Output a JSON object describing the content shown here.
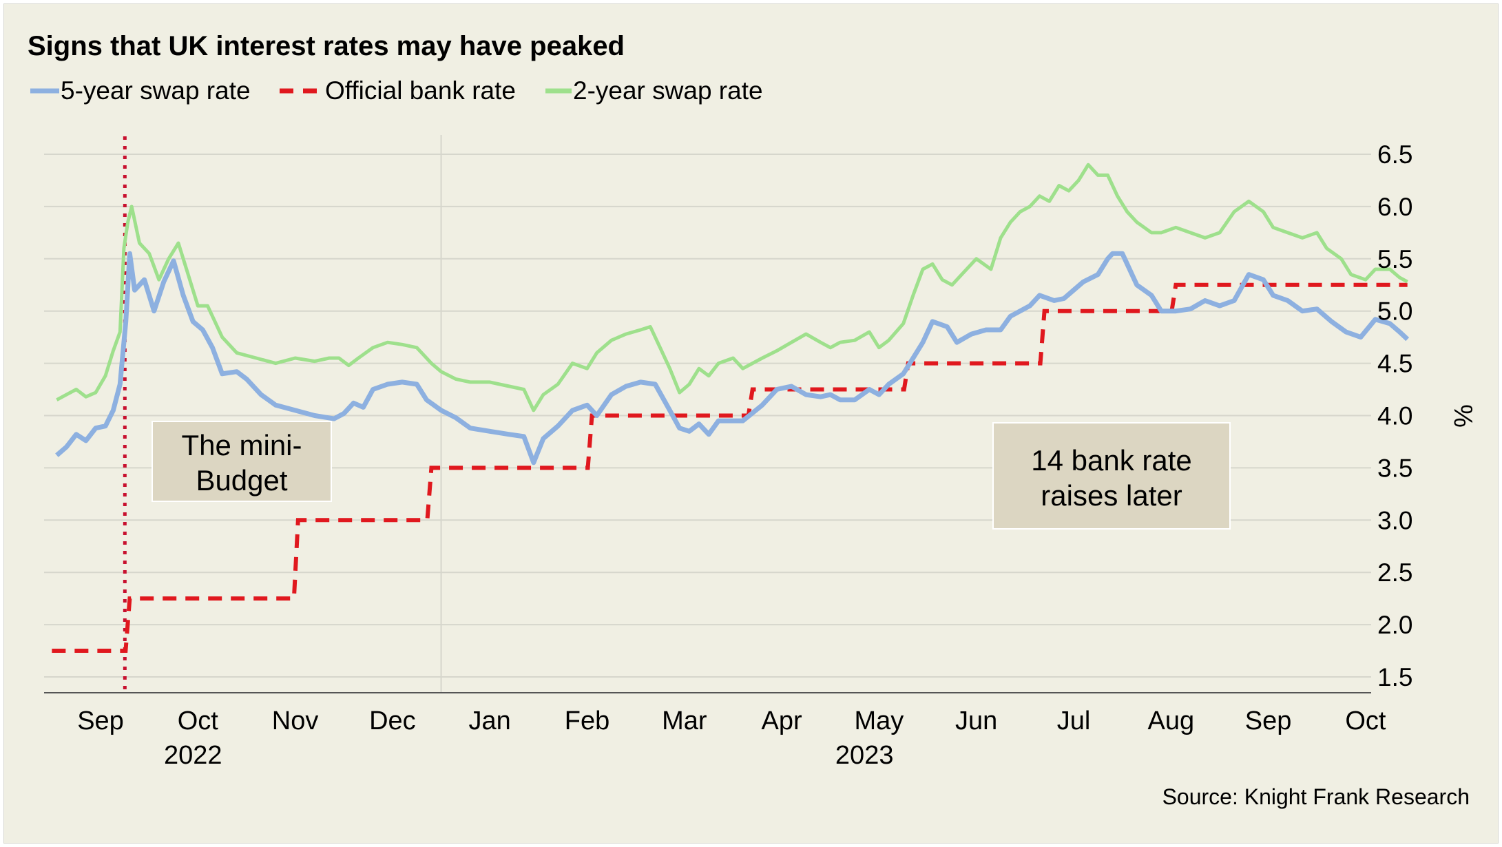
{
  "chart_data": {
    "type": "line",
    "title": "Signs that UK interest rates may have peaked",
    "ylabel": "%",
    "ylim": [
      1.35,
      6.55
    ],
    "yticks": [
      "6.5",
      "6.0",
      "5.5",
      "5.0",
      "4.5",
      "4.0",
      "3.5",
      "3.0",
      "2.5",
      "2.0",
      "1.5"
    ],
    "ytick_values": [
      6.5,
      6.0,
      5.5,
      5.0,
      4.5,
      4.0,
      3.5,
      3.0,
      2.5,
      2.0,
      1.5
    ],
    "x_start_month": 8,
    "x_end_month": 21,
    "month_labels": [
      "Sep",
      "Oct",
      "Nov",
      "Dec",
      "Jan",
      "Feb",
      "Mar",
      "Apr",
      "May",
      "Jun",
      "Jul",
      "Aug",
      "Sep",
      "Oct"
    ],
    "year_labels": [
      {
        "label": "2022",
        "month_center": 9.45
      },
      {
        "label": "2023",
        "month_center": 16.35
      }
    ],
    "year_divider_month": 12,
    "mini_budget_month": 8.75,
    "legend": [
      {
        "name": "5-year swap rate",
        "style": "solid",
        "color": "#8db0e0"
      },
      {
        "name": "Official bank rate",
        "style": "dashed",
        "color": "#e0181e"
      },
      {
        "name": "2-year swap rate",
        "style": "solid",
        "color": "#9ee08c"
      }
    ],
    "series": [
      {
        "name": "5-year swap rate",
        "color": "#8db0e0",
        "points": [
          [
            8.05,
            3.62
          ],
          [
            8.15,
            3.7
          ],
          [
            8.25,
            3.82
          ],
          [
            8.35,
            3.76
          ],
          [
            8.45,
            3.88
          ],
          [
            8.55,
            3.9
          ],
          [
            8.63,
            4.05
          ],
          [
            8.7,
            4.3
          ],
          [
            8.76,
            4.9
          ],
          [
            8.8,
            5.55
          ],
          [
            8.85,
            5.2
          ],
          [
            8.95,
            5.3
          ],
          [
            9.05,
            5.0
          ],
          [
            9.15,
            5.28
          ],
          [
            9.25,
            5.48
          ],
          [
            9.35,
            5.15
          ],
          [
            9.45,
            4.9
          ],
          [
            9.55,
            4.82
          ],
          [
            9.65,
            4.65
          ],
          [
            9.75,
            4.4
          ],
          [
            9.9,
            4.42
          ],
          [
            10.0,
            4.35
          ],
          [
            10.15,
            4.2
          ],
          [
            10.3,
            4.1
          ],
          [
            10.5,
            4.05
          ],
          [
            10.7,
            4.0
          ],
          [
            10.9,
            3.97
          ],
          [
            11.0,
            4.02
          ],
          [
            11.1,
            4.12
          ],
          [
            11.2,
            4.08
          ],
          [
            11.3,
            4.25
          ],
          [
            11.45,
            4.3
          ],
          [
            11.6,
            4.32
          ],
          [
            11.75,
            4.3
          ],
          [
            11.85,
            4.15
          ],
          [
            12.0,
            4.05
          ],
          [
            12.15,
            3.98
          ],
          [
            12.3,
            3.88
          ],
          [
            12.5,
            3.85
          ],
          [
            12.7,
            3.82
          ],
          [
            12.85,
            3.8
          ],
          [
            12.95,
            3.55
          ],
          [
            13.05,
            3.78
          ],
          [
            13.2,
            3.9
          ],
          [
            13.35,
            4.05
          ],
          [
            13.5,
            4.1
          ],
          [
            13.6,
            4.0
          ],
          [
            13.75,
            4.2
          ],
          [
            13.9,
            4.28
          ],
          [
            14.05,
            4.32
          ],
          [
            14.2,
            4.3
          ],
          [
            14.35,
            4.05
          ],
          [
            14.45,
            3.88
          ],
          [
            14.55,
            3.85
          ],
          [
            14.65,
            3.92
          ],
          [
            14.75,
            3.82
          ],
          [
            14.85,
            3.95
          ],
          [
            15.0,
            3.95
          ],
          [
            15.1,
            3.95
          ],
          [
            15.3,
            4.1
          ],
          [
            15.45,
            4.25
          ],
          [
            15.6,
            4.28
          ],
          [
            15.75,
            4.2
          ],
          [
            15.9,
            4.18
          ],
          [
            16.0,
            4.2
          ],
          [
            16.1,
            4.15
          ],
          [
            16.25,
            4.15
          ],
          [
            16.4,
            4.25
          ],
          [
            16.5,
            4.2
          ],
          [
            16.6,
            4.3
          ],
          [
            16.75,
            4.4
          ],
          [
            16.85,
            4.55
          ],
          [
            16.95,
            4.7
          ],
          [
            17.05,
            4.9
          ],
          [
            17.2,
            4.85
          ],
          [
            17.3,
            4.7
          ],
          [
            17.45,
            4.78
          ],
          [
            17.6,
            4.82
          ],
          [
            17.75,
            4.82
          ],
          [
            17.85,
            4.95
          ],
          [
            17.95,
            5.0
          ],
          [
            18.05,
            5.05
          ],
          [
            18.15,
            5.15
          ],
          [
            18.3,
            5.1
          ],
          [
            18.4,
            5.12
          ],
          [
            18.5,
            5.2
          ],
          [
            18.6,
            5.28
          ],
          [
            18.75,
            5.35
          ],
          [
            18.85,
            5.5
          ],
          [
            18.9,
            5.55
          ],
          [
            19.0,
            5.55
          ],
          [
            19.05,
            5.45
          ],
          [
            19.15,
            5.25
          ],
          [
            19.3,
            5.15
          ],
          [
            19.4,
            5.0
          ],
          [
            19.55,
            5.0
          ],
          [
            19.7,
            5.02
          ],
          [
            19.85,
            5.1
          ],
          [
            20.0,
            5.05
          ],
          [
            20.15,
            5.1
          ],
          [
            20.3,
            5.35
          ],
          [
            20.45,
            5.3
          ],
          [
            20.55,
            5.15
          ],
          [
            20.7,
            5.1
          ],
          [
            20.85,
            5.0
          ],
          [
            21.0,
            5.02
          ],
          [
            21.15,
            4.9
          ],
          [
            21.3,
            4.8
          ],
          [
            21.45,
            4.75
          ],
          [
            21.6,
            4.92
          ],
          [
            21.75,
            4.88
          ],
          [
            21.85,
            4.8
          ],
          [
            21.93,
            4.73
          ]
        ]
      },
      {
        "name": "2-year swap rate",
        "color": "#9ee08c",
        "points": [
          [
            8.05,
            4.15
          ],
          [
            8.15,
            4.2
          ],
          [
            8.25,
            4.25
          ],
          [
            8.35,
            4.18
          ],
          [
            8.45,
            4.22
          ],
          [
            8.55,
            4.38
          ],
          [
            8.63,
            4.62
          ],
          [
            8.7,
            4.8
          ],
          [
            8.74,
            5.6
          ],
          [
            8.78,
            5.85
          ],
          [
            8.82,
            6.0
          ],
          [
            8.9,
            5.65
          ],
          [
            9.0,
            5.55
          ],
          [
            9.1,
            5.3
          ],
          [
            9.2,
            5.5
          ],
          [
            9.3,
            5.65
          ],
          [
            9.4,
            5.35
          ],
          [
            9.5,
            5.05
          ],
          [
            9.6,
            5.05
          ],
          [
            9.75,
            4.75
          ],
          [
            9.9,
            4.6
          ],
          [
            10.1,
            4.55
          ],
          [
            10.3,
            4.5
          ],
          [
            10.5,
            4.55
          ],
          [
            10.7,
            4.52
          ],
          [
            10.85,
            4.55
          ],
          [
            10.95,
            4.55
          ],
          [
            11.05,
            4.48
          ],
          [
            11.15,
            4.55
          ],
          [
            11.3,
            4.65
          ],
          [
            11.45,
            4.7
          ],
          [
            11.6,
            4.68
          ],
          [
            11.75,
            4.65
          ],
          [
            11.9,
            4.5
          ],
          [
            12.0,
            4.42
          ],
          [
            12.15,
            4.35
          ],
          [
            12.3,
            4.32
          ],
          [
            12.5,
            4.32
          ],
          [
            12.7,
            4.28
          ],
          [
            12.85,
            4.25
          ],
          [
            12.95,
            4.05
          ],
          [
            13.05,
            4.2
          ],
          [
            13.2,
            4.3
          ],
          [
            13.35,
            4.5
          ],
          [
            13.5,
            4.45
          ],
          [
            13.6,
            4.6
          ],
          [
            13.75,
            4.72
          ],
          [
            13.9,
            4.78
          ],
          [
            14.05,
            4.82
          ],
          [
            14.15,
            4.85
          ],
          [
            14.25,
            4.65
          ],
          [
            14.35,
            4.45
          ],
          [
            14.45,
            4.22
          ],
          [
            14.55,
            4.3
          ],
          [
            14.65,
            4.45
          ],
          [
            14.75,
            4.38
          ],
          [
            14.85,
            4.5
          ],
          [
            15.0,
            4.55
          ],
          [
            15.1,
            4.45
          ],
          [
            15.3,
            4.55
          ],
          [
            15.45,
            4.62
          ],
          [
            15.6,
            4.7
          ],
          [
            15.75,
            4.78
          ],
          [
            15.9,
            4.7
          ],
          [
            16.0,
            4.65
          ],
          [
            16.1,
            4.7
          ],
          [
            16.25,
            4.72
          ],
          [
            16.4,
            4.8
          ],
          [
            16.5,
            4.65
          ],
          [
            16.6,
            4.72
          ],
          [
            16.75,
            4.88
          ],
          [
            16.85,
            5.15
          ],
          [
            16.95,
            5.4
          ],
          [
            17.05,
            5.45
          ],
          [
            17.15,
            5.3
          ],
          [
            17.25,
            5.25
          ],
          [
            17.35,
            5.35
          ],
          [
            17.5,
            5.5
          ],
          [
            17.65,
            5.4
          ],
          [
            17.75,
            5.7
          ],
          [
            17.85,
            5.85
          ],
          [
            17.95,
            5.95
          ],
          [
            18.05,
            6.0
          ],
          [
            18.15,
            6.1
          ],
          [
            18.25,
            6.05
          ],
          [
            18.35,
            6.2
          ],
          [
            18.45,
            6.15
          ],
          [
            18.55,
            6.25
          ],
          [
            18.65,
            6.4
          ],
          [
            18.75,
            6.3
          ],
          [
            18.85,
            6.3
          ],
          [
            18.95,
            6.1
          ],
          [
            19.05,
            5.95
          ],
          [
            19.15,
            5.85
          ],
          [
            19.3,
            5.75
          ],
          [
            19.4,
            5.75
          ],
          [
            19.55,
            5.8
          ],
          [
            19.7,
            5.75
          ],
          [
            19.85,
            5.7
          ],
          [
            20.0,
            5.75
          ],
          [
            20.15,
            5.95
          ],
          [
            20.3,
            6.05
          ],
          [
            20.45,
            5.95
          ],
          [
            20.55,
            5.8
          ],
          [
            20.7,
            5.75
          ],
          [
            20.85,
            5.7
          ],
          [
            21.0,
            5.75
          ],
          [
            21.1,
            5.6
          ],
          [
            21.25,
            5.5
          ],
          [
            21.35,
            5.35
          ],
          [
            21.5,
            5.3
          ],
          [
            21.6,
            5.4
          ],
          [
            21.75,
            5.4
          ],
          [
            21.85,
            5.32
          ],
          [
            21.93,
            5.28
          ]
        ]
      },
      {
        "name": "Official bank rate",
        "color": "#e0181e",
        "steps": [
          [
            8.0,
            1.75
          ],
          [
            8.8,
            2.25
          ],
          [
            10.53,
            3.0
          ],
          [
            11.9,
            3.5
          ],
          [
            13.55,
            4.0
          ],
          [
            15.2,
            4.25
          ],
          [
            16.8,
            4.5
          ],
          [
            18.2,
            5.0
          ],
          [
            19.55,
            5.25
          ],
          [
            21.93,
            5.25
          ]
        ]
      }
    ],
    "annotations": [
      {
        "text_lines": [
          "The mini-",
          "Budget"
        ]
      },
      {
        "text_lines": [
          "14 bank rate",
          "raises later"
        ]
      }
    ],
    "source": "Source: Knight Frank Research"
  },
  "colors": {
    "background": "#f0efe3",
    "grid": "#d6d6cc",
    "annotation_box": "#dcd6c2",
    "mini_budget_marker": "#c8102e"
  }
}
